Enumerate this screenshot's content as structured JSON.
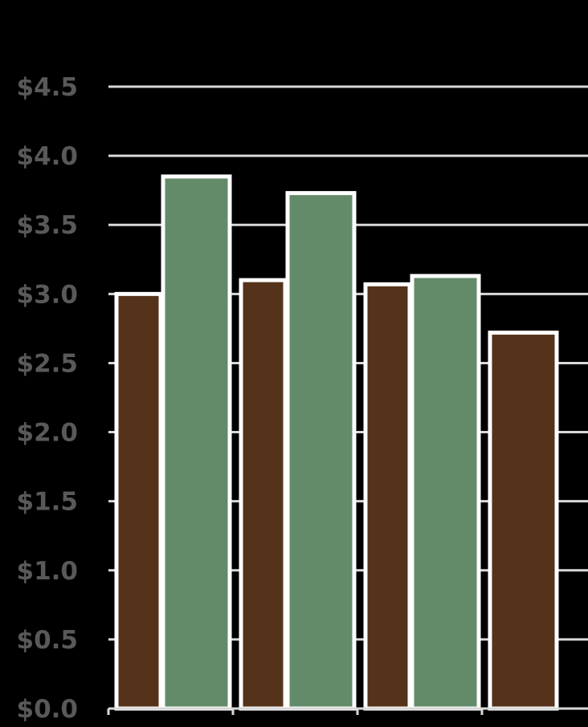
{
  "chart_data": {
    "type": "bar",
    "title": "",
    "xlabel": "",
    "ylabel": "",
    "categories": [
      "",
      "",
      "",
      ""
    ],
    "series": [
      {
        "color": "#55321a",
        "values": [
          3.0,
          3.1,
          3.07,
          2.72
        ]
      },
      {
        "color": "#638b69",
        "values": [
          3.85,
          3.73,
          3.13,
          null
        ]
      }
    ],
    "ylim": [
      0,
      4.5
    ],
    "yticks": [
      0,
      0.5,
      1.0,
      1.5,
      2.0,
      2.5,
      3.0,
      3.5,
      4.0,
      4.5
    ],
    "ytick_labels": [
      "$0.0",
      "$0.5",
      "$1.0",
      "$1.5",
      "$2.0",
      "$2.5",
      "$3.0",
      "$3.5",
      "$4.0",
      "$4.5"
    ],
    "grid": true,
    "legend": "none",
    "colors": {
      "background": "#000000",
      "grid": "#d9d9d9",
      "tick_text": "#595959",
      "bar_border": "#ffffff"
    }
  }
}
